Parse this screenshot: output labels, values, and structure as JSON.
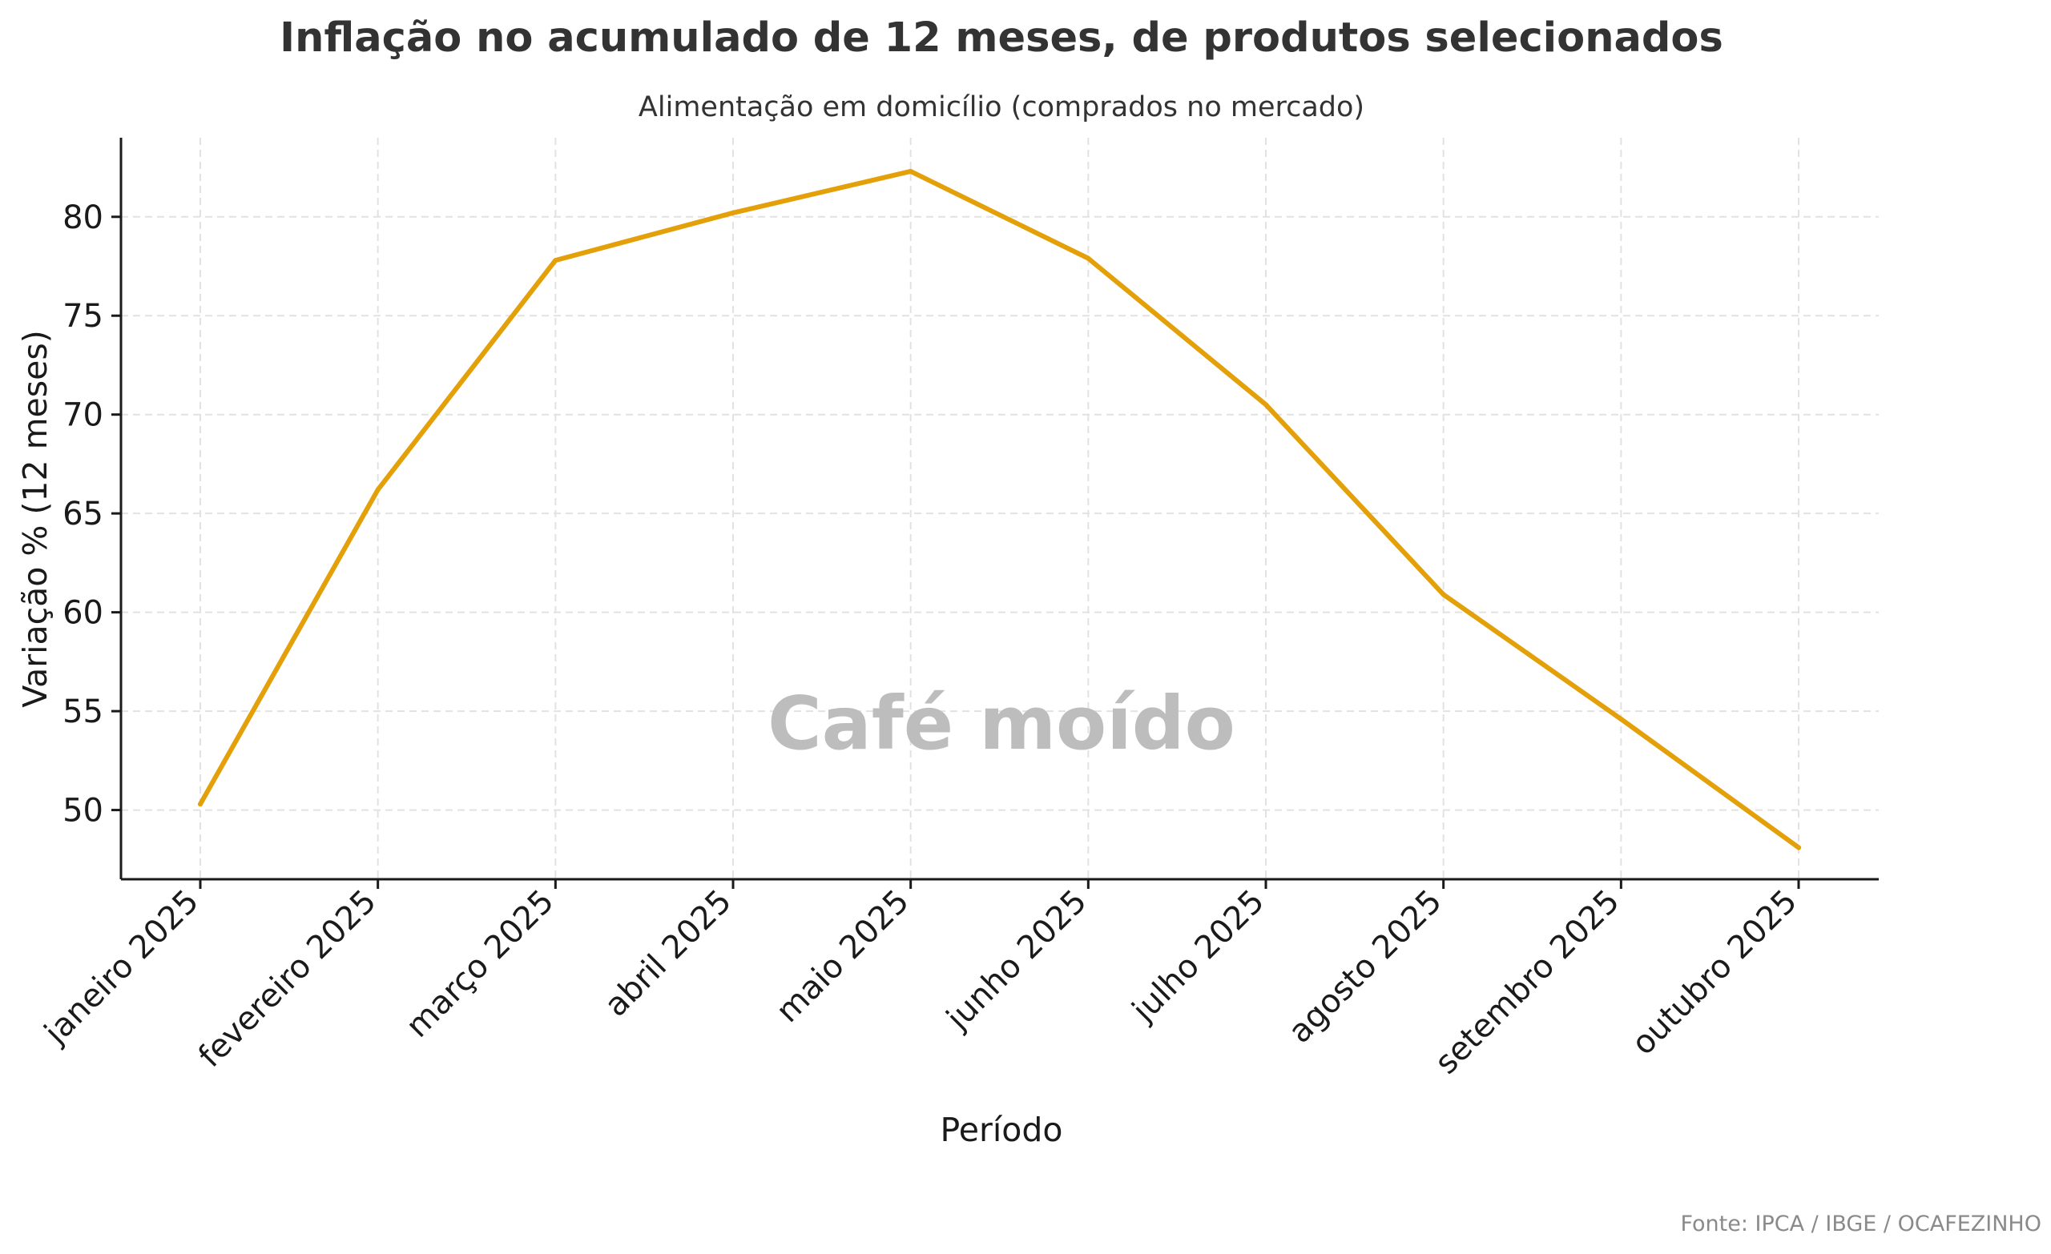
{
  "chart_data": {
    "type": "line",
    "title": "Inflação no acumulado de 12 meses, de produtos selecionados",
    "subtitle": "Alimentação em domicílio (comprados no mercado)",
    "xlabel": "Período",
    "ylabel": "Variação % (12 meses)",
    "categories": [
      "janeiro 2025",
      "fevereiro 2025",
      "março 2025",
      "abril 2025",
      "maio 2025",
      "junho 2025",
      "julho 2025",
      "agosto 2025",
      "setembro 2025",
      "outubro 2025"
    ],
    "series": [
      {
        "name": "Café moído",
        "values": [
          50.3,
          66.2,
          77.8,
          80.2,
          82.3,
          77.9,
          70.5,
          60.9,
          54.6,
          48.1
        ],
        "color": "#e3a008"
      }
    ],
    "yticks": [
      50,
      55,
      60,
      65,
      70,
      75,
      80
    ],
    "ylim": [
      46.5,
      84.0
    ],
    "grid": true,
    "annotation": "Café moído",
    "source": "Fonte: IPCA / IBGE / OCAFEZINHO"
  }
}
